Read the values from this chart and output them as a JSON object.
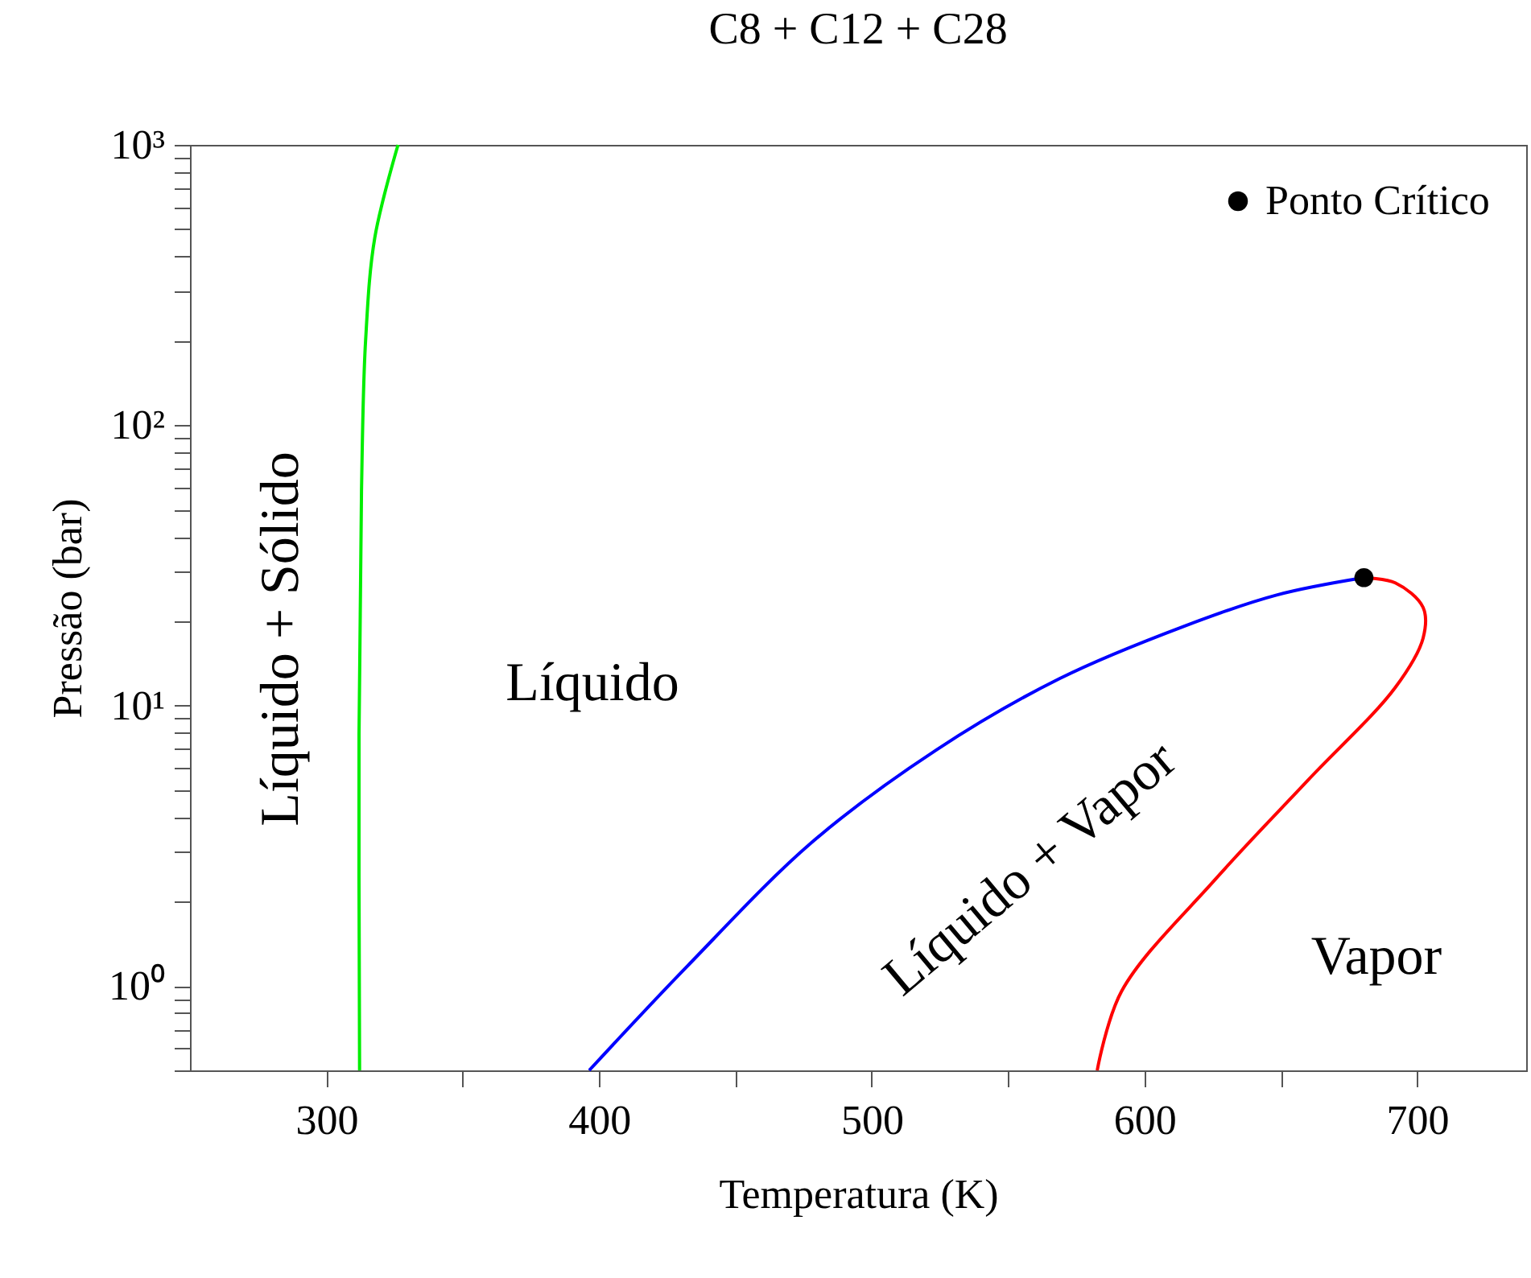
{
  "chart_data": {
    "type": "line",
    "title": "C8 + C12 + C28",
    "xlabel": "Temperatura (K)",
    "ylabel": "Pressão (bar)",
    "log": "y",
    "grid": false,
    "legend": "top right",
    "marker": "none",
    "xlim": [
      250,
      740
    ],
    "xticks": [
      300,
      {
        "value": 350,
        "label": null
      },
      400,
      {
        "value": 450,
        "label": null
      },
      500,
      {
        "value": 550,
        "label": null
      },
      600,
      {
        "value": 650,
        "label": null
      },
      700
    ],
    "ylim": [
      0.5,
      1000
    ],
    "yticks": [
      {
        "value": 0.5,
        "label": null
      },
      {
        "value": 0.6,
        "label": null
      },
      {
        "value": 0.7,
        "label": null
      },
      {
        "value": 0.8,
        "label": null
      },
      {
        "value": 0.9,
        "label": null
      },
      {
        "value": 1,
        "label": "10⁰"
      },
      {
        "value": 2,
        "label": null
      },
      {
        "value": 3,
        "label": null
      },
      {
        "value": 4,
        "label": null
      },
      {
        "value": 5,
        "label": null
      },
      {
        "value": 6,
        "label": null
      },
      {
        "value": 7,
        "label": null
      },
      {
        "value": 8,
        "label": null
      },
      {
        "value": 9,
        "label": null
      },
      {
        "value": 10,
        "label": "10¹"
      },
      {
        "value": 20,
        "label": null
      },
      {
        "value": 30,
        "label": null
      },
      {
        "value": 40,
        "label": null
      },
      {
        "value": 50,
        "label": null
      },
      {
        "value": 60,
        "label": null
      },
      {
        "value": 70,
        "label": null
      },
      {
        "value": 80,
        "label": null
      },
      {
        "value": 90,
        "label": null
      },
      {
        "value": 100,
        "label": "10²"
      },
      {
        "value": 200,
        "label": null
      },
      {
        "value": 300,
        "label": null
      },
      {
        "value": 400,
        "label": null
      },
      {
        "value": 500,
        "label": null
      },
      {
        "value": 600,
        "label": null
      },
      {
        "value": 700,
        "label": null
      },
      {
        "value": 800,
        "label": null
      },
      {
        "value": 900,
        "label": null
      },
      {
        "value": 1000,
        "label": "10³"
      }
    ],
    "series": [
      {
        "color": "#00ee00",
        "x": [
          312.2,
          312,
          312.9,
          314.4,
          317.8,
          326.3
        ],
        "values": [
          0.5,
          7.9,
          58,
          200,
          468,
          1000
        ]
      },
      {
        "color": "#0000ff",
        "x": [
          396.4,
          432.5,
          478,
          523.7,
          569,
          614.6,
          648.5,
          680.5
        ],
        "values": [
          0.5,
          1.18,
          3.25,
          6.95,
          12.5,
          19.2,
          24.8,
          28.6
        ]
      },
      {
        "color": "#ff0000",
        "x": [
          680.5,
          692,
          702.2,
          702.2,
          692,
          660,
          626,
          591.7,
          582.7
        ],
        "values": [
          28.6,
          27.4,
          22.4,
          17.4,
          11.6,
          5.42,
          2.4,
          0.96,
          0.5
        ]
      },
      {
        "type": "scatter",
        "name": "Ponto Crítico",
        "color": "#000000",
        "marker": "circle",
        "x": [
          680.5
        ],
        "values": [
          28.6
        ]
      }
    ],
    "annotations": [
      "Líquido + Sólido",
      "Líquido",
      "Líquido + Vapor",
      "Vapor"
    ]
  }
}
